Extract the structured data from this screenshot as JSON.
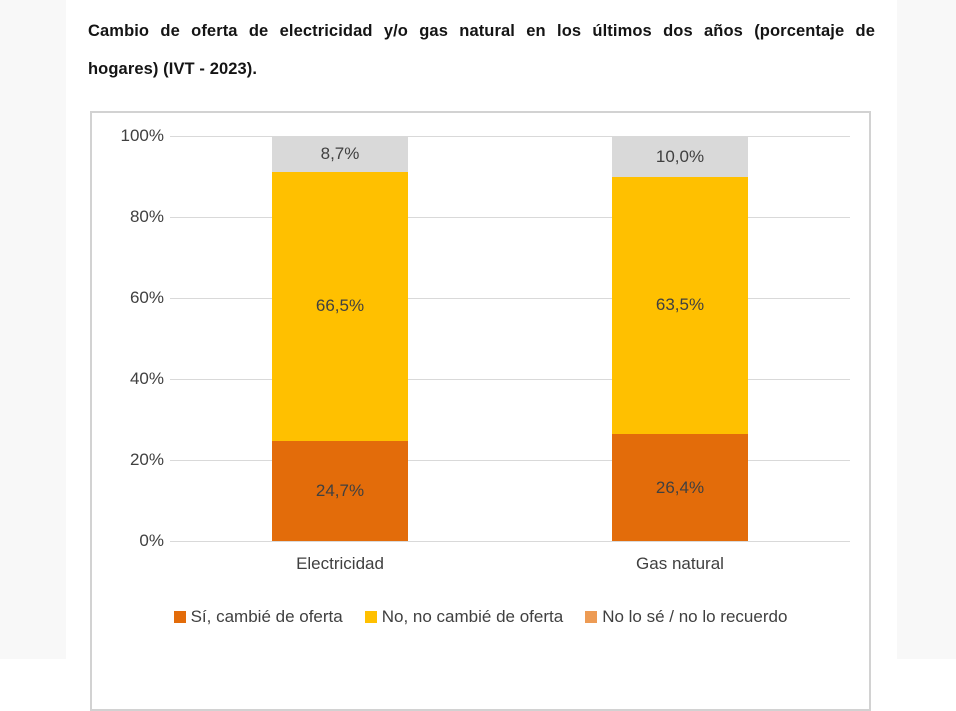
{
  "page": {
    "title_line1": "Cambio de oferta de electricidad y/o gas natural en los últimos dos años (porcentaje de",
    "title_line2": "hogares) (IVT - 2023)."
  },
  "chart_data": {
    "type": "bar",
    "stacked": true,
    "title": "Cambio de oferta de electricidad y/o gas natural en los últimos dos años (porcentaje de hogares) (IVT - 2023).",
    "categories": [
      "Electricidad",
      "Gas natural"
    ],
    "series": [
      {
        "name": "Sí, cambié de oferta",
        "color": "#e36c0a",
        "legend_color": "#e36c0a",
        "values": [
          24.7,
          26.4
        ]
      },
      {
        "name": "No, no cambié de oferta",
        "color": "#ffc000",
        "legend_color": "#ffc000",
        "values": [
          66.5,
          63.5
        ]
      },
      {
        "name": "No lo sé / no lo recuerdo",
        "color": "#d9d9d9",
        "legend_color": "#ed9b54",
        "values": [
          8.7,
          10.0
        ]
      }
    ],
    "y_ticks": [
      "100%",
      "80%",
      "60%",
      "40%",
      "20%",
      "0%"
    ],
    "ylim": [
      0,
      100
    ],
    "value_suffix": "%",
    "decimal_separator": ",",
    "grid": true,
    "legend_position": "bottom",
    "colors": {
      "label_text": "#404040",
      "gridline": "#d9d9d9",
      "chart_border": "#d2d2d2",
      "page_margin": "#f8f8f8"
    }
  }
}
